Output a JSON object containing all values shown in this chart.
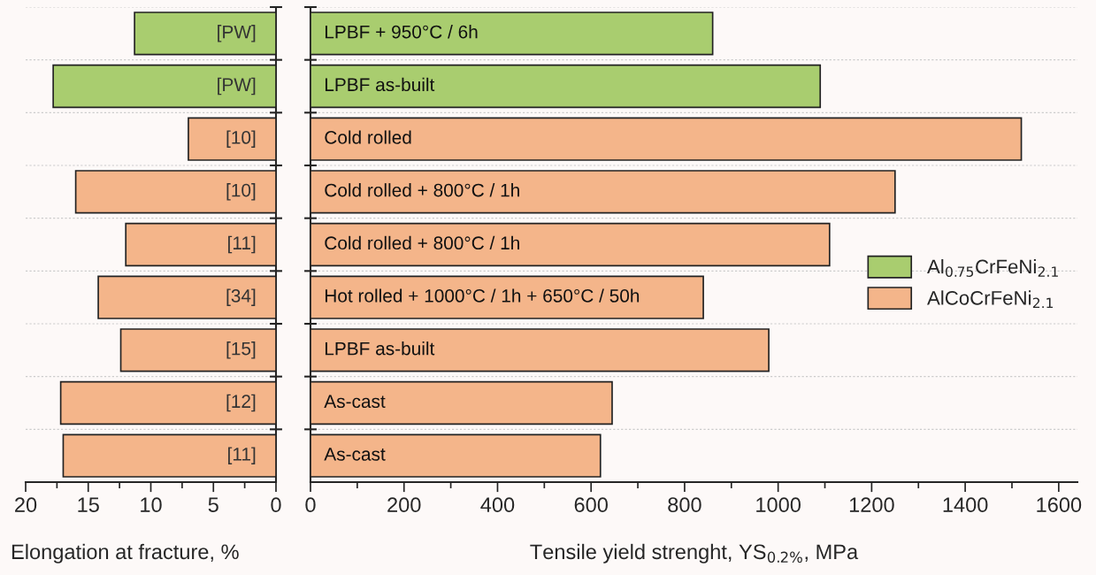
{
  "chart_data": [
    {
      "type": "bar",
      "orientation": "horizontal",
      "xlabel": "Elongation at fracture, %",
      "categories": [
        "[PW]",
        "[PW]",
        "[10]",
        "[10]",
        "[11]",
        "[34]",
        "[15]",
        "[12]",
        "[11]"
      ],
      "series": [
        {
          "color": "#a9cd6f",
          "values": [
            11.3,
            17.8,
            null,
            null,
            null,
            null,
            null,
            null,
            null
          ]
        },
        {
          "color": "#f4b58a",
          "values": [
            null,
            null,
            7.0,
            16.0,
            12.0,
            14.2,
            12.4,
            17.2,
            17.0
          ]
        }
      ],
      "xlim": [
        20,
        0
      ],
      "xticks": [
        20,
        {
          "value": 17.5,
          "label": null
        },
        15,
        {
          "value": 12.5,
          "label": null
        },
        10,
        {
          "value": 7.5,
          "label": null
        },
        5,
        {
          "value": 2.5,
          "label": null
        },
        0
      ],
      "grid": "y",
      "legend": false
    },
    {
      "type": "bar",
      "orientation": "horizontal",
      "xlabel": "Tensile yield strenght, YS$_{0.2%}$, MPa",
      "categories": [
        "LPBF + 950°C / 6h",
        "LPBF as-built",
        "Cold rolled",
        "Cold rolled + 800°C / 1h",
        "Cold rolled + 800°C / 1h",
        "Hot rolled + 1000°C / 1h + 650°C / 50h",
        "LPBF as-built",
        "As-cast",
        "As-cast"
      ],
      "series": [
        {
          "name": "Al$_{0.75}$CrFeNi$_{2.1}$",
          "color": "#a9cd6f",
          "values": [
            860,
            1090,
            null,
            null,
            null,
            null,
            null,
            null,
            null
          ]
        },
        {
          "name": "AlCoCrFeNi$_{2.1}$",
          "color": "#f4b58a",
          "values": [
            null,
            null,
            1520,
            1250,
            1110,
            840,
            980,
            645,
            620
          ]
        }
      ],
      "xlim": [
        0,
        1640
      ],
      "xticks": [
        0,
        {
          "value": 100,
          "label": null
        },
        200,
        {
          "value": 300,
          "label": null
        },
        400,
        {
          "value": 500,
          "label": null
        },
        600,
        {
          "value": 700,
          "label": null
        },
        800,
        {
          "value": 900,
          "label": null
        },
        1000,
        {
          "value": 1100,
          "label": null
        },
        1200,
        {
          "value": 1300,
          "label": null
        },
        1400,
        {
          "value": 1500,
          "label": null
        },
        1600
      ],
      "grid": "y",
      "legend": "right"
    }
  ]
}
